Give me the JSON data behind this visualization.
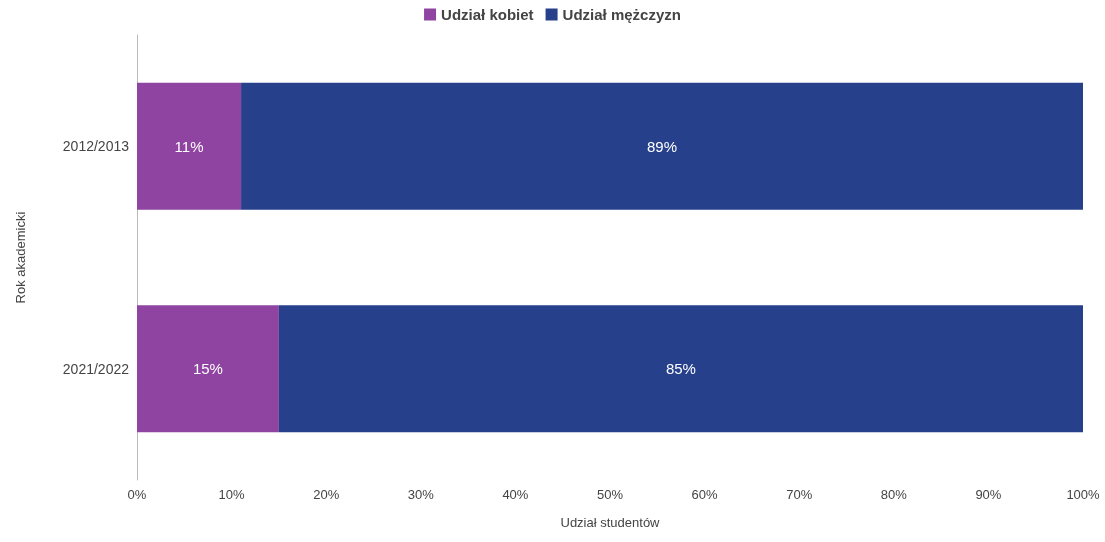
{
  "chart_data": {
    "type": "bar",
    "orientation": "horizontal",
    "stacked": true,
    "xlabel": "Udział studentów",
    "ylabel": "Rok akademicki",
    "categories": [
      "2012/2013",
      "2021/2022"
    ],
    "series": [
      {
        "name": "Udział kobiet",
        "color": "#8e44a0",
        "values": [
          11,
          15
        ],
        "value_labels": [
          "11%",
          "15%"
        ]
      },
      {
        "name": "Udział mężczyzn",
        "color": "#27408b",
        "values": [
          89,
          85
        ],
        "value_labels": [
          "89%",
          "85%"
        ]
      }
    ],
    "xlim": [
      0,
      100
    ],
    "xticks": [
      {
        "value": 0,
        "label": "0%"
      },
      {
        "value": 10,
        "label": "10%"
      },
      {
        "value": 20,
        "label": "20%"
      },
      {
        "value": 30,
        "label": "30%"
      },
      {
        "value": 40,
        "label": "40%"
      },
      {
        "value": 50,
        "label": "50%"
      },
      {
        "value": 60,
        "label": "60%"
      },
      {
        "value": 70,
        "label": "70%"
      },
      {
        "value": 80,
        "label": "80%"
      },
      {
        "value": 90,
        "label": "90%"
      },
      {
        "value": 100,
        "label": "100%"
      }
    ],
    "grid": false,
    "legend": "top"
  }
}
